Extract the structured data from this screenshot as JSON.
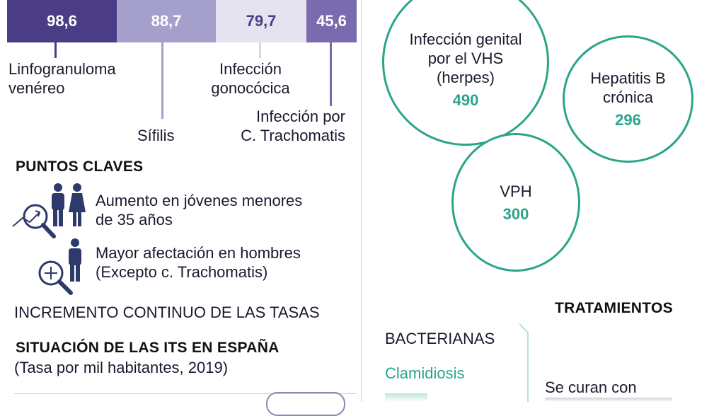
{
  "colors": {
    "dark_purple": "#4b3c86",
    "mid_purple": "#a49fcb",
    "light_purple": "#e6e3f1",
    "purple2": "#7a6aae",
    "teal": "#2aa58a"
  },
  "bar": {
    "segments": [
      {
        "value": "98,6",
        "label": "Linfogranuloma venéreo"
      },
      {
        "value": "88,7",
        "label": "Sífilis"
      },
      {
        "value": "79,7",
        "label": "Infección gonocócica"
      },
      {
        "value": "45,6",
        "label": "Infección por C. Trachomatis"
      }
    ],
    "labels": {
      "linfo_1": "Linfogranuloma",
      "linfo_2": "venéreo",
      "sifilis": "Sífilis",
      "gono_1": "Infección",
      "gono_2": "gonocócica",
      "trach_1": "Infección por",
      "trach_2": "C. Trachomatis"
    }
  },
  "puntos": {
    "title": "PUNTOS CLAVES",
    "item1_line1": "Aumento en jóvenes menores",
    "item1_line2": "de 35 años",
    "item2_line1": "Mayor afectación en hombres",
    "item2_line2": "(Excepto c. Trachomatis)",
    "item1_icons": [
      "magnifier-trend-icon",
      "man-icon",
      "woman-icon"
    ],
    "item2_icons": [
      "magnifier-plus-icon",
      "man-icon"
    ]
  },
  "incremento": "INCREMENTO CONTINUO DE LAS TASAS",
  "situacion": {
    "title": "SITUACIÓN DE LAS ITS EN ESPAÑA",
    "subtitle": "(Tasa por mil habitantes, 2019)"
  },
  "circles": {
    "herpes": {
      "line1": "Infección genital",
      "line2": "por el VHS",
      "line3": "(herpes)",
      "value": "490"
    },
    "hepatitis": {
      "line1": "Hepatitis B",
      "line2": "crónica",
      "value": "296"
    },
    "vph": {
      "line1": "VPH",
      "value": "300"
    }
  },
  "tratamientos": {
    "title": "TRATAMIENTOS",
    "bacterianas": "BACTERIANAS",
    "clamidiosis": "Clamidiosis",
    "curan": "Se curan con"
  }
}
